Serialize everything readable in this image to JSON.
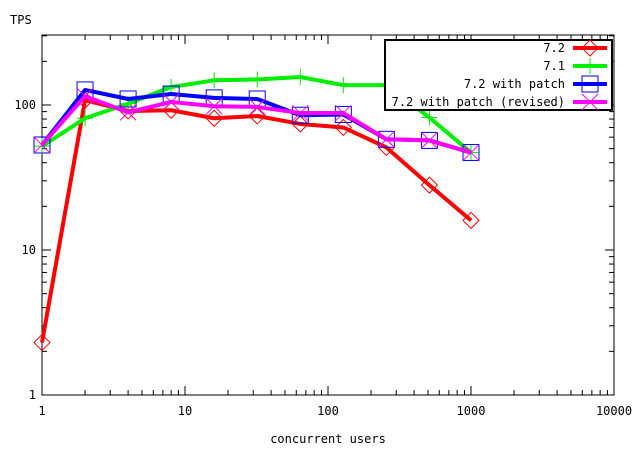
{
  "chart_data": {
    "type": "line",
    "title": "",
    "xlabel": "concurrent users",
    "ylabel": "TPS",
    "xscale": "log",
    "yscale": "log",
    "xlim": [
      1,
      10000
    ],
    "ylim": [
      1,
      300
    ],
    "x_ticks": [
      1,
      10,
      100,
      1000,
      10000
    ],
    "x_tick_labels": [
      "1",
      "10",
      "100",
      "1000",
      "10000"
    ],
    "y_ticks": [
      1,
      10,
      100
    ],
    "y_tick_labels": [
      "1",
      "10",
      "100"
    ],
    "legend_position": "top-right",
    "x": [
      1,
      2,
      4,
      8,
      16,
      32,
      64,
      128,
      256,
      512,
      1000
    ],
    "series": [
      {
        "name": "7.2",
        "color": "#ff0000",
        "marker": "diamond",
        "values": [
          2.3,
          108,
          91,
          92,
          81,
          84,
          74,
          70,
          51,
          28,
          16
        ]
      },
      {
        "name": "7.1",
        "color": "#00ee00",
        "marker": "plus",
        "values": [
          52,
          81,
          102,
          133,
          148,
          150,
          156,
          137,
          137,
          82,
          47
        ]
      },
      {
        "name": "7.2 with patch",
        "color": "#0000ff",
        "marker": "square",
        "values": [
          53,
          127,
          110,
          119,
          112,
          110,
          85,
          86,
          58,
          57,
          47
        ]
      },
      {
        "name": "7.2 with patch (revised)",
        "color": "#ff00ff",
        "marker": "cross",
        "values": [
          53,
          115,
          89,
          105,
          98,
          97,
          88,
          88,
          58,
          57,
          47
        ]
      }
    ]
  }
}
